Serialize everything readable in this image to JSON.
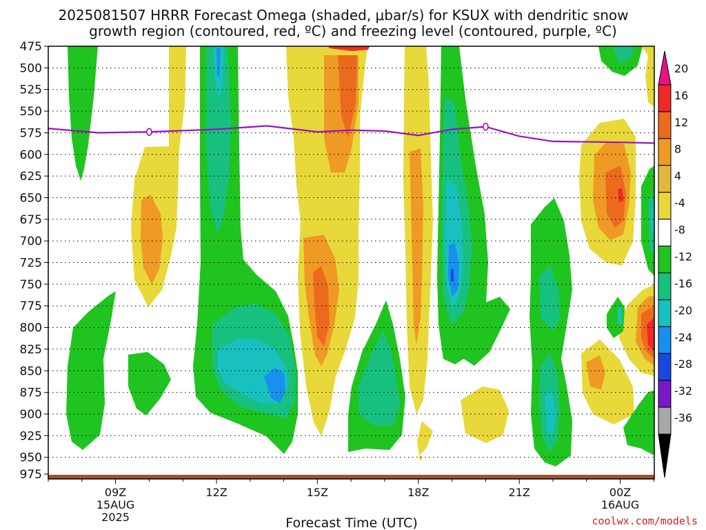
{
  "chart_data": {
    "type": "heatmap",
    "title_lines": [
      "2025081507 HRRR Forecast Omega (shaded, μbar/s) for KSUX with dendritic snow",
      "growth region (contoured, red, ºC) and freezing level (contoured, purple, ºC)"
    ],
    "xlabel": "Forecast Time (UTC)",
    "credit": "coolwx.com/models",
    "y_ticks": [
      "475",
      "500",
      "525",
      "550",
      "575",
      "600",
      "625",
      "650",
      "675",
      "700",
      "725",
      "750",
      "775",
      "800",
      "825",
      "850",
      "875",
      "900",
      "925",
      "950",
      "975"
    ],
    "x_ticks": [
      {
        "label": "09Z",
        "sub": [
          "15AUG",
          "2025"
        ]
      },
      {
        "label": "12Z",
        "sub": []
      },
      {
        "label": "15Z",
        "sub": []
      },
      {
        "label": "18Z",
        "sub": []
      },
      {
        "label": "21Z",
        "sub": []
      },
      {
        "label": "00Z",
        "sub": [
          "16AUG"
        ]
      }
    ],
    "colorbar": {
      "labels": [
        "20",
        "16",
        "12",
        "8",
        "4",
        "-4",
        "-8",
        "-12",
        "-16",
        "-20",
        "-24",
        "-28",
        "-32",
        "-36"
      ],
      "colors": [
        "#e8127e",
        "#f02828",
        "#ec6a1e",
        "#ef9a24",
        "#e0b840",
        "#e8d83a",
        "#ffffff",
        "#20c420",
        "#18c080",
        "#18c0c0",
        "#1890f0",
        "#1848e0",
        "#7a18c8",
        "#a818c0",
        "#a8a8a8"
      ]
    },
    "shading_colors": {
      "green": "#20c420",
      "teal": "#18c080",
      "cyan": "#18c0c0",
      "blue": "#1890f0",
      "deepblue": "#1848e0",
      "yellow": "#e8d83a",
      "gold": "#e0b840",
      "orange": "#ef9a24",
      "darkorange": "#ec6a1e",
      "red": "#f02828",
      "magenta": "#e8127e"
    },
    "freezing_level_color": "#9a10c8",
    "freezing_level_hpa": [
      [
        7.0,
        570
      ],
      [
        8.5,
        575
      ],
      [
        10,
        574
      ],
      [
        12,
        571
      ],
      [
        13.5,
        567
      ],
      [
        15,
        574
      ],
      [
        16,
        572
      ],
      [
        17,
        573
      ],
      [
        18,
        578
      ],
      [
        19,
        571
      ],
      [
        20,
        568
      ],
      [
        21,
        579
      ],
      [
        22,
        585
      ],
      [
        24,
        586
      ],
      [
        25,
        587
      ]
    ],
    "dgz_color": "#f03020",
    "ground_color": "#a0522d"
  }
}
